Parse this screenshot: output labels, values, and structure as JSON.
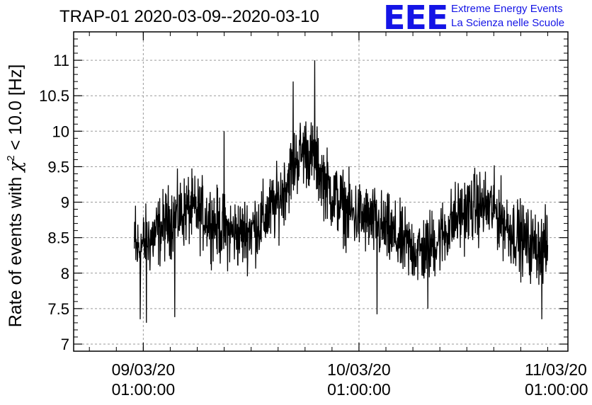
{
  "title": "TRAP-01 2020-03-09--2020-03-10",
  "logo": {
    "mark": "EEE",
    "line1": "Extreme Energy Events",
    "line2": "La Scienza nelle Scuole",
    "color": "#1414e6"
  },
  "chart_data": {
    "type": "line",
    "title": "TRAP-01 2020-03-09--2020-03-10",
    "xlabel": "",
    "ylabel_parts": [
      "Rate of events with ",
      "χ",
      "2",
      " < 10.0 [Hz]"
    ],
    "ylabel": "Rate of events with χ2 < 10.0 [Hz]",
    "ylim": [
      6.9,
      11.4
    ],
    "yticks": [
      7,
      7.5,
      8,
      8.5,
      9,
      9.5,
      10,
      10.5,
      11
    ],
    "ytick_labels": [
      "7",
      "7.5",
      "8",
      "8.5",
      "9",
      "9.5",
      "10",
      "10.5",
      "11"
    ],
    "xlim": [
      "2020-03-08T17:15:00",
      "2020-03-11T00:15:00"
    ],
    "xticks": [
      "2020-03-09T01:00:00",
      "2020-03-10T01:00:00",
      "2020-03-11T01:00:00"
    ],
    "xtick_labels": [
      [
        "09/03/20",
        "01:00:00"
      ],
      [
        "10/03/20",
        "01:00:00"
      ],
      [
        "11/03/20",
        "01:00:00"
      ]
    ],
    "grid": true,
    "series_color": "#000000",
    "series": [
      {
        "x": [
          "2020-03-09T00:00:00",
          "2020-03-09T02:00:00",
          "2020-03-09T04:00:00",
          "2020-03-09T06:00:00",
          "2020-03-09T08:00:00",
          "2020-03-09T10:00:00",
          "2020-03-09T12:00:00",
          "2020-03-09T14:00:00",
          "2020-03-09T16:00:00",
          "2020-03-09T17:00:00",
          "2020-03-09T18:00:00",
          "2020-03-09T19:00:00",
          "2020-03-09T20:00:00",
          "2020-03-09T22:00:00",
          "2020-03-10T00:00:00",
          "2020-03-10T02:00:00",
          "2020-03-10T04:00:00",
          "2020-03-10T06:00:00",
          "2020-03-10T08:00:00",
          "2020-03-10T10:00:00",
          "2020-03-10T12:00:00",
          "2020-03-10T14:00:00",
          "2020-03-10T16:00:00",
          "2020-03-10T18:00:00",
          "2020-03-10T20:00:00",
          "2020-03-10T22:00:00"
        ],
        "values": [
          8.3,
          8.5,
          8.75,
          8.9,
          8.8,
          8.6,
          8.55,
          8.7,
          9.0,
          9.3,
          9.6,
          9.75,
          9.6,
          9.1,
          8.85,
          8.75,
          8.6,
          8.4,
          8.3,
          8.5,
          8.8,
          8.95,
          8.9,
          8.6,
          8.4,
          8.35
        ],
        "noise_amplitude": 0.55,
        "extremes": [
          {
            "x": "2020-03-09T20:05:00",
            "y": 11.0
          },
          {
            "x": "2020-03-09T17:40:00",
            "y": 10.7
          },
          {
            "x": "2020-03-09T10:00:00",
            "y": 10.0
          },
          {
            "x": "2020-03-09T00:07:00",
            "y": 8.95
          },
          {
            "x": "2020-03-09T00:40:00",
            "y": 7.35
          },
          {
            "x": "2020-03-09T01:20:00",
            "y": 7.3
          },
          {
            "x": "2020-03-09T04:30:00",
            "y": 7.38
          },
          {
            "x": "2020-03-10T03:00:00",
            "y": 7.42
          },
          {
            "x": "2020-03-10T08:40:00",
            "y": 7.5
          },
          {
            "x": "2020-03-10T21:20:00",
            "y": 7.35
          }
        ]
      }
    ]
  }
}
